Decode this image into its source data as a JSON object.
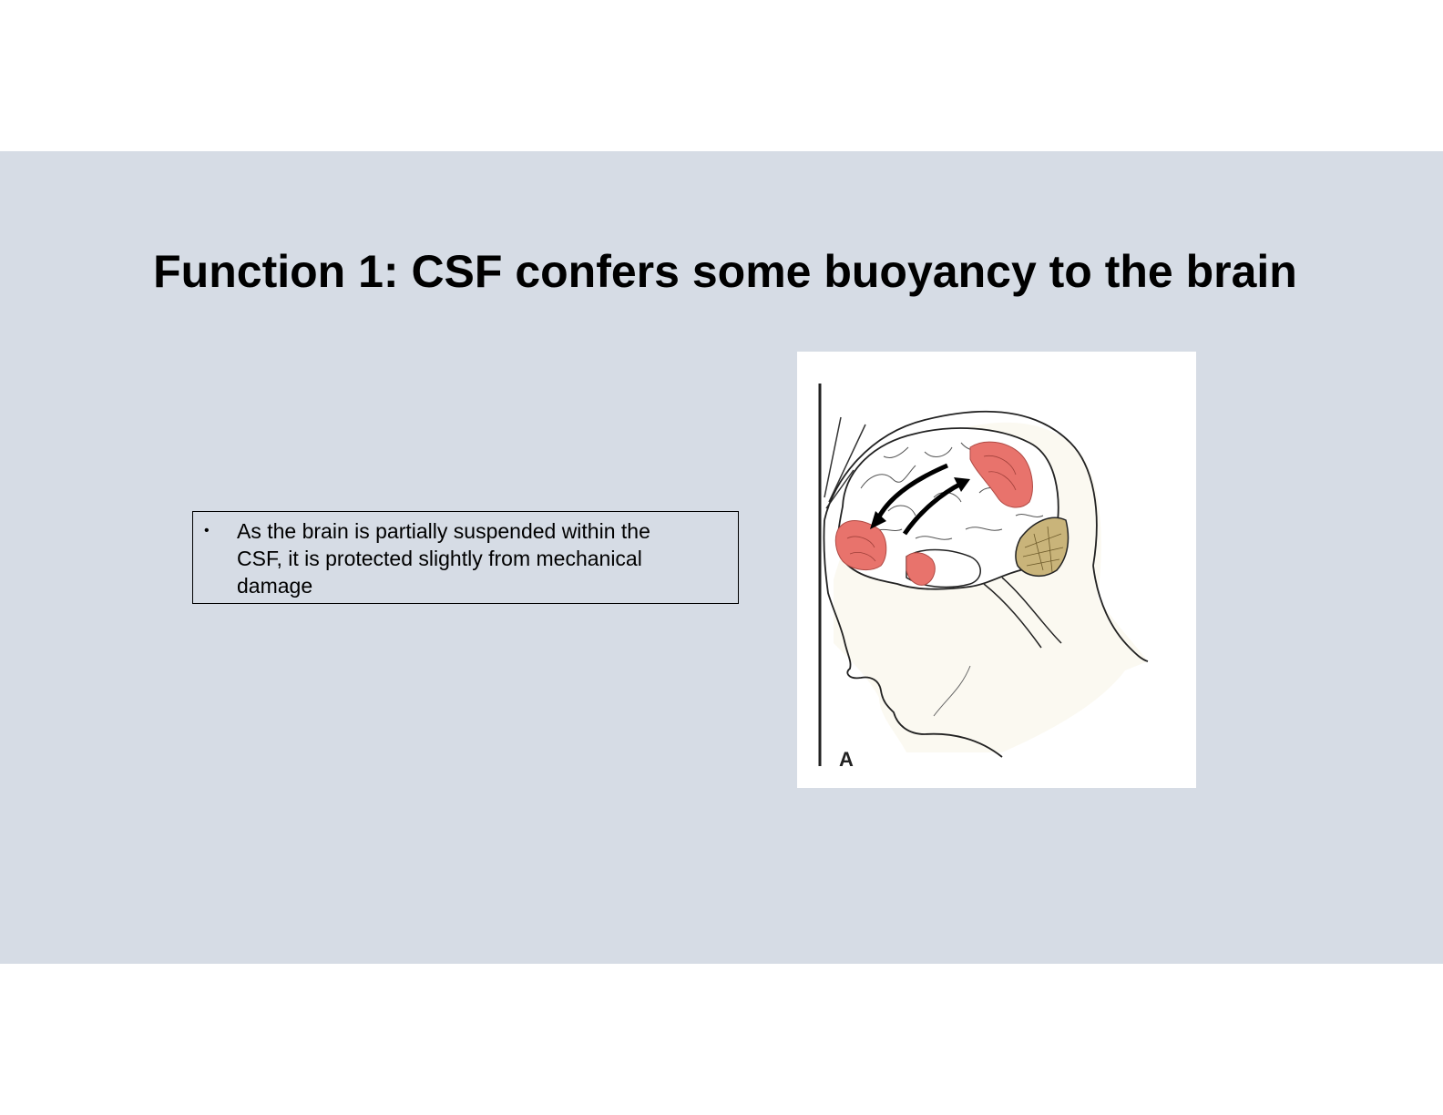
{
  "slide": {
    "title": "Function 1: CSF confers some buoyancy to the brain",
    "bullets": [
      {
        "marker": "•",
        "text": "As the brain is partially suspended within the CSF, it is protected slightly from mechanical damage"
      }
    ],
    "figure": {
      "panel_label": "A",
      "colors": {
        "background": "#d6dce5",
        "brain_fill": "#ffffff",
        "contusion": "#e8736c",
        "cerebellum": "#c9b47a",
        "outline": "#222222"
      }
    }
  }
}
